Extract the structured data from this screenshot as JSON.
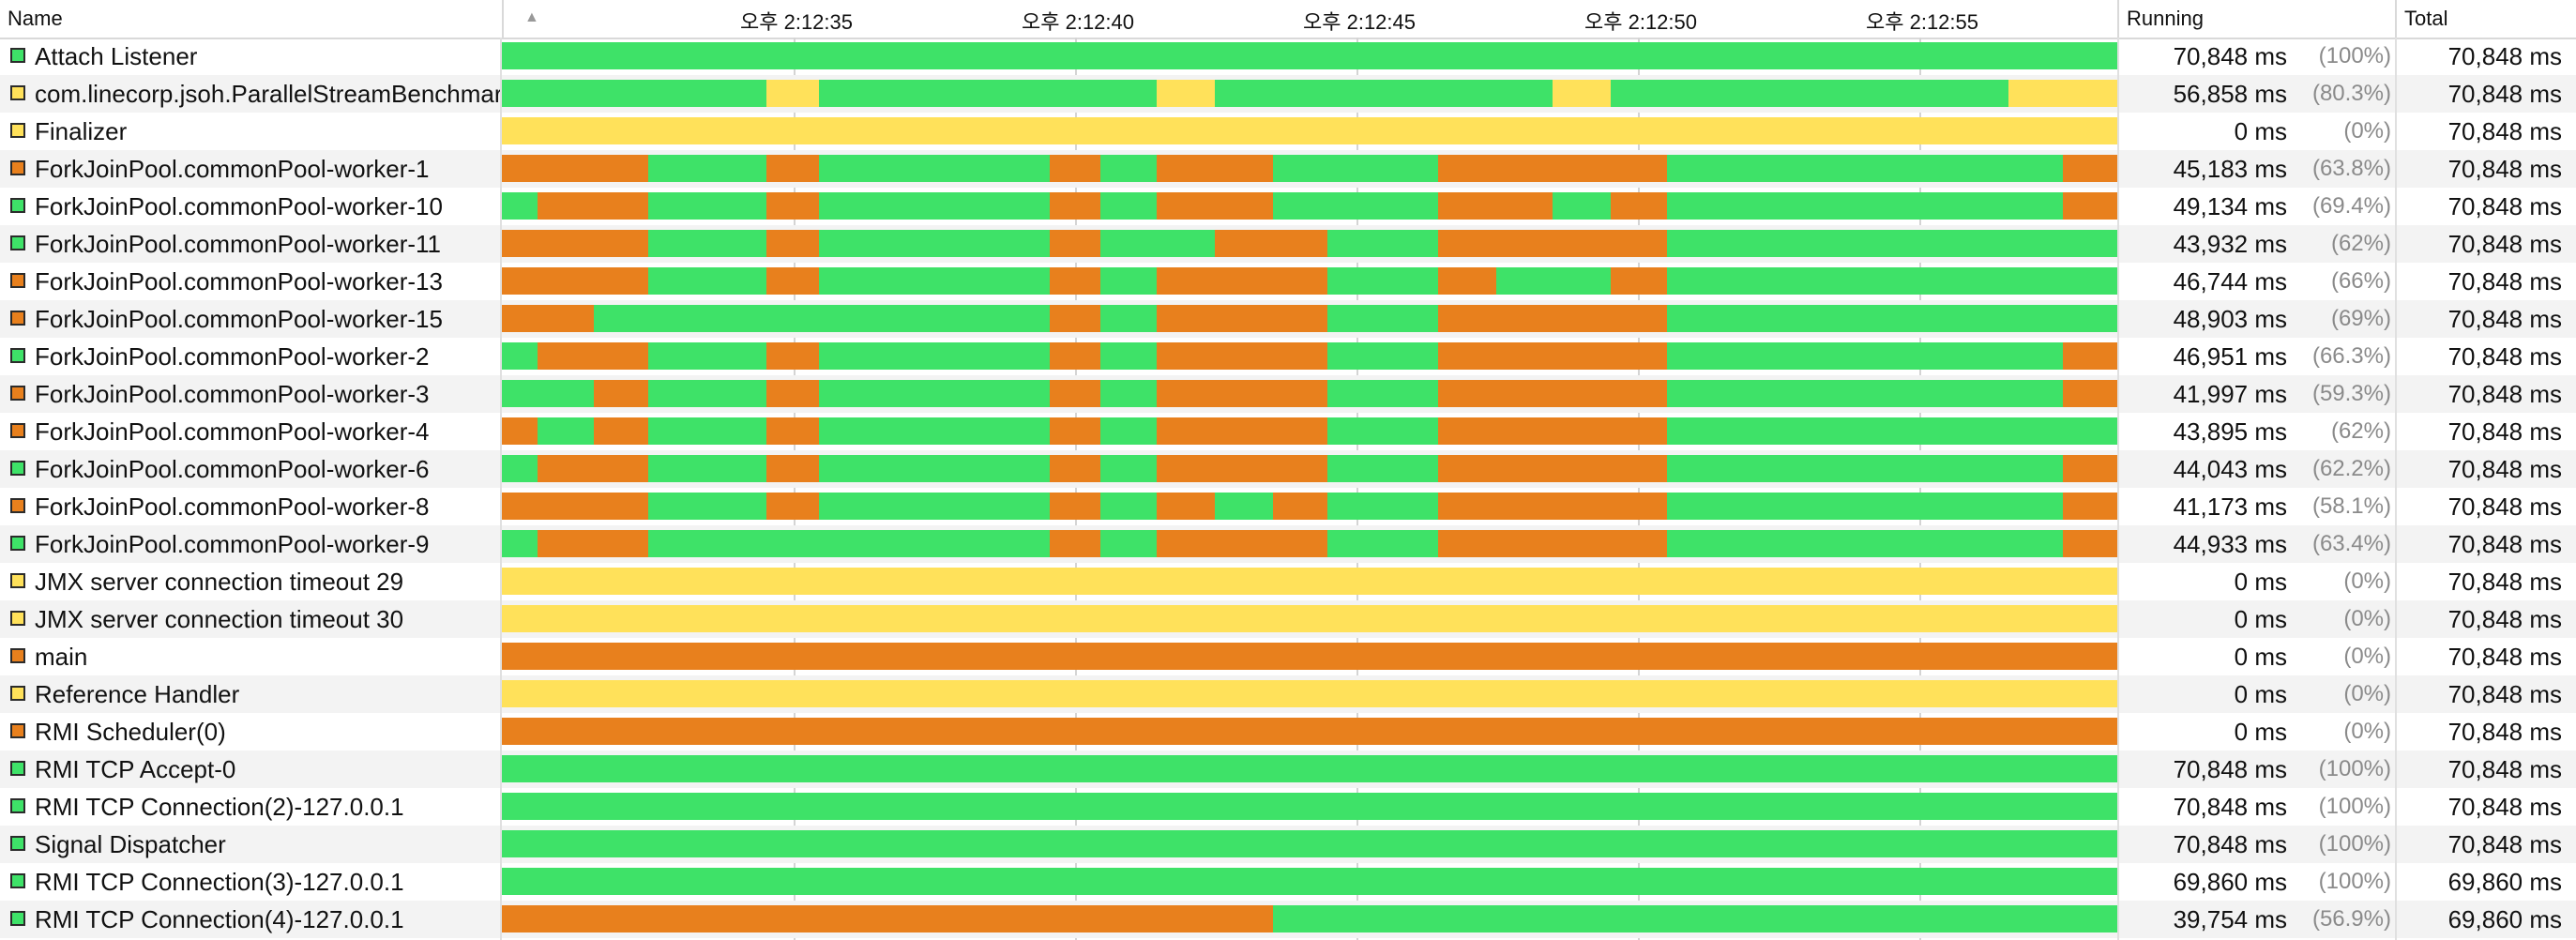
{
  "columns": {
    "name": "Name",
    "running": "Running",
    "total": "Total"
  },
  "timeline": {
    "ticks": [
      "오후 2:12:35",
      "오후 2:12:40",
      "오후 2:12:45",
      "오후 2:12:50",
      "오후 2:12:55"
    ],
    "tick_times_s": [
      5.2,
      10.2,
      15.2,
      20.2,
      25.2
    ],
    "span_s": 28.7,
    "sort_icon": "sort-ascending-icon"
  },
  "state_colors": {
    "running": "#3ee268",
    "waiting": "#ffe15a",
    "blocked": "#e8801d"
  },
  "threads": [
    {
      "name": "Attach Listener",
      "color": "#3ee268",
      "running": "70,848 ms",
      "percent": "(100%)",
      "total": "70,848 ms",
      "segments": [
        [
          "running",
          0,
          28.7
        ]
      ]
    },
    {
      "name": "com.linecorp.jsoh.ParallelStreamBenchmark",
      "color": "#ffe15a",
      "running": "56,858 ms",
      "percent": "(80.3%)",
      "total": "70,848 ms",
      "segments": [
        [
          "running",
          0,
          4.7
        ],
        [
          "waiting",
          4.7,
          5.64
        ],
        [
          "running",
          5.64,
          11.64
        ],
        [
          "waiting",
          11.64,
          12.67
        ],
        [
          "running",
          12.67,
          18.67
        ],
        [
          "waiting",
          18.67,
          19.7
        ],
        [
          "running",
          19.7,
          26.76
        ],
        [
          "waiting",
          26.76,
          28.7
        ]
      ]
    },
    {
      "name": "Finalizer",
      "color": "#ffe15a",
      "running": "0 ms",
      "percent": "(0%)",
      "total": "70,848 ms",
      "segments": [
        [
          "waiting",
          0,
          28.7
        ]
      ]
    },
    {
      "name": "ForkJoinPool.commonPool-worker-1",
      "color": "#e8801d",
      "running": "45,183 ms",
      "percent": "(63.8%)",
      "total": "70,848 ms",
      "segments": [
        [
          "blocked",
          0,
          2.6
        ],
        [
          "running",
          2.6,
          4.7
        ],
        [
          "blocked",
          4.7,
          5.64
        ],
        [
          "running",
          5.64,
          9.74
        ],
        [
          "blocked",
          9.74,
          10.63
        ],
        [
          "running",
          10.63,
          11.64
        ],
        [
          "blocked",
          11.64,
          13.7
        ],
        [
          "running",
          13.7,
          16.64
        ],
        [
          "blocked",
          16.64,
          20.7
        ],
        [
          "running",
          20.7,
          27.73
        ],
        [
          "blocked",
          27.73,
          28.7
        ]
      ]
    },
    {
      "name": "ForkJoinPool.commonPool-worker-10",
      "color": "#3ee268",
      "running": "49,134 ms",
      "percent": "(69.4%)",
      "total": "70,848 ms",
      "segments": [
        [
          "running",
          0,
          0.63
        ],
        [
          "blocked",
          0.63,
          2.6
        ],
        [
          "running",
          2.6,
          4.7
        ],
        [
          "blocked",
          4.7,
          5.64
        ],
        [
          "running",
          5.64,
          9.74
        ],
        [
          "blocked",
          9.74,
          10.63
        ],
        [
          "running",
          10.63,
          11.64
        ],
        [
          "blocked",
          11.64,
          13.7
        ],
        [
          "running",
          13.7,
          16.64
        ],
        [
          "blocked",
          16.64,
          18.67
        ],
        [
          "running",
          18.67,
          19.7
        ],
        [
          "blocked",
          19.7,
          20.7
        ],
        [
          "running",
          20.7,
          27.73
        ],
        [
          "blocked",
          27.73,
          28.7
        ]
      ]
    },
    {
      "name": "ForkJoinPool.commonPool-worker-11",
      "color": "#3ee268",
      "running": "43,932 ms",
      "percent": "(62%)",
      "total": "70,848 ms",
      "segments": [
        [
          "blocked",
          0,
          2.6
        ],
        [
          "running",
          2.6,
          4.7
        ],
        [
          "blocked",
          4.7,
          5.64
        ],
        [
          "running",
          5.64,
          9.74
        ],
        [
          "blocked",
          9.74,
          10.63
        ],
        [
          "running",
          10.63,
          12.67
        ],
        [
          "blocked",
          12.67,
          14.67
        ],
        [
          "running",
          14.67,
          16.64
        ],
        [
          "blocked",
          16.64,
          20.7
        ],
        [
          "running",
          20.7,
          28.7
        ]
      ]
    },
    {
      "name": "ForkJoinPool.commonPool-worker-13",
      "color": "#e8801d",
      "running": "46,744 ms",
      "percent": "(66%)",
      "total": "70,848 ms",
      "segments": [
        [
          "blocked",
          0,
          2.6
        ],
        [
          "running",
          2.6,
          4.7
        ],
        [
          "blocked",
          4.7,
          5.64
        ],
        [
          "running",
          5.64,
          9.74
        ],
        [
          "blocked",
          9.74,
          10.63
        ],
        [
          "running",
          10.63,
          11.64
        ],
        [
          "blocked",
          11.64,
          14.67
        ],
        [
          "running",
          14.67,
          16.64
        ],
        [
          "blocked",
          16.64,
          17.67
        ],
        [
          "running",
          17.67,
          19.7
        ],
        [
          "blocked",
          19.7,
          20.7
        ],
        [
          "running",
          20.7,
          28.7
        ]
      ]
    },
    {
      "name": "ForkJoinPool.commonPool-worker-15",
      "color": "#e8801d",
      "running": "48,903 ms",
      "percent": "(69%)",
      "total": "70,848 ms",
      "segments": [
        [
          "blocked",
          0,
          1.63
        ],
        [
          "running",
          1.63,
          9.74
        ],
        [
          "blocked",
          9.74,
          10.63
        ],
        [
          "running",
          10.63,
          11.64
        ],
        [
          "blocked",
          11.64,
          14.67
        ],
        [
          "running",
          14.67,
          16.64
        ],
        [
          "blocked",
          16.64,
          20.7
        ],
        [
          "running",
          20.7,
          28.7
        ]
      ]
    },
    {
      "name": "ForkJoinPool.commonPool-worker-2",
      "color": "#3ee268",
      "running": "46,951 ms",
      "percent": "(66.3%)",
      "total": "70,848 ms",
      "segments": [
        [
          "running",
          0,
          0.63
        ],
        [
          "blocked",
          0.63,
          2.6
        ],
        [
          "running",
          2.6,
          4.7
        ],
        [
          "blocked",
          4.7,
          5.64
        ],
        [
          "running",
          5.64,
          9.74
        ],
        [
          "blocked",
          9.74,
          10.63
        ],
        [
          "running",
          10.63,
          11.64
        ],
        [
          "blocked",
          11.64,
          14.67
        ],
        [
          "running",
          14.67,
          16.64
        ],
        [
          "blocked",
          16.64,
          20.7
        ],
        [
          "running",
          20.7,
          27.73
        ],
        [
          "blocked",
          27.73,
          28.7
        ]
      ]
    },
    {
      "name": "ForkJoinPool.commonPool-worker-3",
      "color": "#e8801d",
      "running": "41,997 ms",
      "percent": "(59.3%)",
      "total": "70,848 ms",
      "segments": [
        [
          "running",
          0,
          1.63
        ],
        [
          "blocked",
          1.63,
          2.6
        ],
        [
          "running",
          2.6,
          4.7
        ],
        [
          "blocked",
          4.7,
          5.64
        ],
        [
          "running",
          5.64,
          9.74
        ],
        [
          "blocked",
          9.74,
          10.63
        ],
        [
          "running",
          10.63,
          11.64
        ],
        [
          "blocked",
          11.64,
          14.67
        ],
        [
          "running",
          14.67,
          16.64
        ],
        [
          "blocked",
          16.64,
          20.7
        ],
        [
          "running",
          20.7,
          27.73
        ],
        [
          "blocked",
          27.73,
          28.7
        ]
      ]
    },
    {
      "name": "ForkJoinPool.commonPool-worker-4",
      "color": "#e8801d",
      "running": "43,895 ms",
      "percent": "(62%)",
      "total": "70,848 ms",
      "segments": [
        [
          "blocked",
          0,
          0.63
        ],
        [
          "running",
          0.63,
          1.63
        ],
        [
          "blocked",
          1.63,
          2.6
        ],
        [
          "running",
          2.6,
          4.7
        ],
        [
          "blocked",
          4.7,
          5.64
        ],
        [
          "running",
          5.64,
          9.74
        ],
        [
          "blocked",
          9.74,
          10.63
        ],
        [
          "running",
          10.63,
          11.64
        ],
        [
          "blocked",
          11.64,
          14.67
        ],
        [
          "running",
          14.67,
          16.64
        ],
        [
          "blocked",
          16.64,
          20.7
        ],
        [
          "running",
          20.7,
          28.7
        ]
      ]
    },
    {
      "name": "ForkJoinPool.commonPool-worker-6",
      "color": "#3ee268",
      "running": "44,043 ms",
      "percent": "(62.2%)",
      "total": "70,848 ms",
      "segments": [
        [
          "running",
          0,
          0.63
        ],
        [
          "blocked",
          0.63,
          2.6
        ],
        [
          "running",
          2.6,
          4.7
        ],
        [
          "blocked",
          4.7,
          5.64
        ],
        [
          "running",
          5.64,
          9.74
        ],
        [
          "blocked",
          9.74,
          10.63
        ],
        [
          "running",
          10.63,
          11.64
        ],
        [
          "blocked",
          11.64,
          14.67
        ],
        [
          "running",
          14.67,
          16.64
        ],
        [
          "blocked",
          16.64,
          20.7
        ],
        [
          "running",
          20.7,
          27.73
        ],
        [
          "blocked",
          27.73,
          28.7
        ]
      ]
    },
    {
      "name": "ForkJoinPool.commonPool-worker-8",
      "color": "#e8801d",
      "running": "41,173 ms",
      "percent": "(58.1%)",
      "total": "70,848 ms",
      "segments": [
        [
          "blocked",
          0,
          2.6
        ],
        [
          "running",
          2.6,
          4.7
        ],
        [
          "blocked",
          4.7,
          5.64
        ],
        [
          "running",
          5.64,
          9.74
        ],
        [
          "blocked",
          9.74,
          10.63
        ],
        [
          "running",
          10.63,
          11.64
        ],
        [
          "blocked",
          11.64,
          12.67
        ],
        [
          "running",
          12.67,
          13.7
        ],
        [
          "blocked",
          13.7,
          14.67
        ],
        [
          "running",
          14.67,
          16.64
        ],
        [
          "blocked",
          16.64,
          20.7
        ],
        [
          "running",
          20.7,
          27.73
        ],
        [
          "blocked",
          27.73,
          28.7
        ]
      ]
    },
    {
      "name": "ForkJoinPool.commonPool-worker-9",
      "color": "#3ee268",
      "running": "44,933 ms",
      "percent": "(63.4%)",
      "total": "70,848 ms",
      "segments": [
        [
          "running",
          0,
          0.63
        ],
        [
          "blocked",
          0.63,
          2.6
        ],
        [
          "running",
          2.6,
          9.74
        ],
        [
          "blocked",
          9.74,
          10.63
        ],
        [
          "running",
          10.63,
          11.64
        ],
        [
          "blocked",
          11.64,
          14.67
        ],
        [
          "running",
          14.67,
          16.64
        ],
        [
          "blocked",
          16.64,
          20.7
        ],
        [
          "running",
          20.7,
          27.73
        ],
        [
          "blocked",
          27.73,
          28.7
        ]
      ]
    },
    {
      "name": "JMX server connection timeout 29",
      "color": "#ffe15a",
      "running": "0 ms",
      "percent": "(0%)",
      "total": "70,848 ms",
      "segments": [
        [
          "waiting",
          0,
          28.7
        ]
      ]
    },
    {
      "name": "JMX server connection timeout 30",
      "color": "#ffe15a",
      "running": "0 ms",
      "percent": "(0%)",
      "total": "70,848 ms",
      "segments": [
        [
          "waiting",
          0,
          28.7
        ]
      ]
    },
    {
      "name": "main",
      "color": "#e8801d",
      "running": "0 ms",
      "percent": "(0%)",
      "total": "70,848 ms",
      "segments": [
        [
          "blocked",
          0,
          28.7
        ]
      ]
    },
    {
      "name": "Reference Handler",
      "color": "#ffe15a",
      "running": "0 ms",
      "percent": "(0%)",
      "total": "70,848 ms",
      "segments": [
        [
          "waiting",
          0,
          28.7
        ]
      ]
    },
    {
      "name": "RMI Scheduler(0)",
      "color": "#e8801d",
      "running": "0 ms",
      "percent": "(0%)",
      "total": "70,848 ms",
      "segments": [
        [
          "blocked",
          0,
          28.7
        ]
      ]
    },
    {
      "name": "RMI TCP Accept-0",
      "color": "#3ee268",
      "running": "70,848 ms",
      "percent": "(100%)",
      "total": "70,848 ms",
      "segments": [
        [
          "running",
          0,
          28.7
        ]
      ]
    },
    {
      "name": "RMI TCP Connection(2)-127.0.0.1",
      "color": "#3ee268",
      "running": "70,848 ms",
      "percent": "(100%)",
      "total": "70,848 ms",
      "segments": [
        [
          "running",
          0,
          28.7
        ]
      ]
    },
    {
      "name": "Signal Dispatcher",
      "color": "#3ee268",
      "running": "70,848 ms",
      "percent": "(100%)",
      "total": "70,848 ms",
      "segments": [
        [
          "running",
          0,
          28.7
        ]
      ]
    },
    {
      "name": "RMI TCP Connection(3)-127.0.0.1",
      "color": "#3ee268",
      "running": "69,860 ms",
      "percent": "(100%)",
      "total": "69,860 ms",
      "segments": [
        [
          "running",
          0,
          28.7
        ]
      ]
    },
    {
      "name": "RMI TCP Connection(4)-127.0.0.1",
      "color": "#3ee268",
      "running": "39,754 ms",
      "percent": "(56.9%)",
      "total": "69,860 ms",
      "segments": [
        [
          "blocked",
          0,
          13.7
        ],
        [
          "running",
          13.7,
          28.7
        ]
      ]
    }
  ]
}
